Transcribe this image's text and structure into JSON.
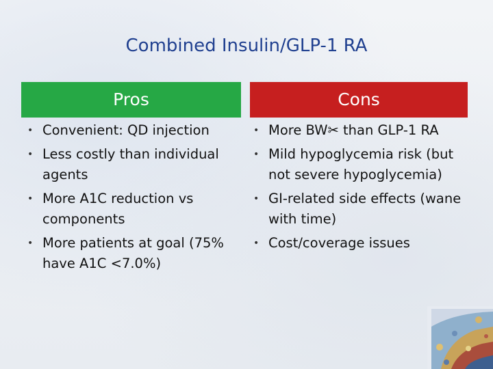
{
  "slide": {
    "title": "Combined Insulin/GLP-1 RA",
    "pros": {
      "header": "Pros",
      "items": [
        "Convenient: QD injection",
        "Less costly than individual agents",
        "More A1C reduction vs components",
        "More patients at goal (75% have A1C <7.0%)"
      ]
    },
    "cons": {
      "header": "Cons",
      "items": [
        "More BW✂ than GLP-1 RA",
        "Mild hypoglycemia risk (but not severe hypoglycemia)",
        "GI-related side effects (wane with time)",
        "Cost/coverage issues"
      ]
    },
    "bullet_glyph": "•",
    "colors": {
      "title": "#1f3f8f",
      "pros_header_bg": "#26a845",
      "cons_header_bg": "#c61f1f"
    }
  }
}
